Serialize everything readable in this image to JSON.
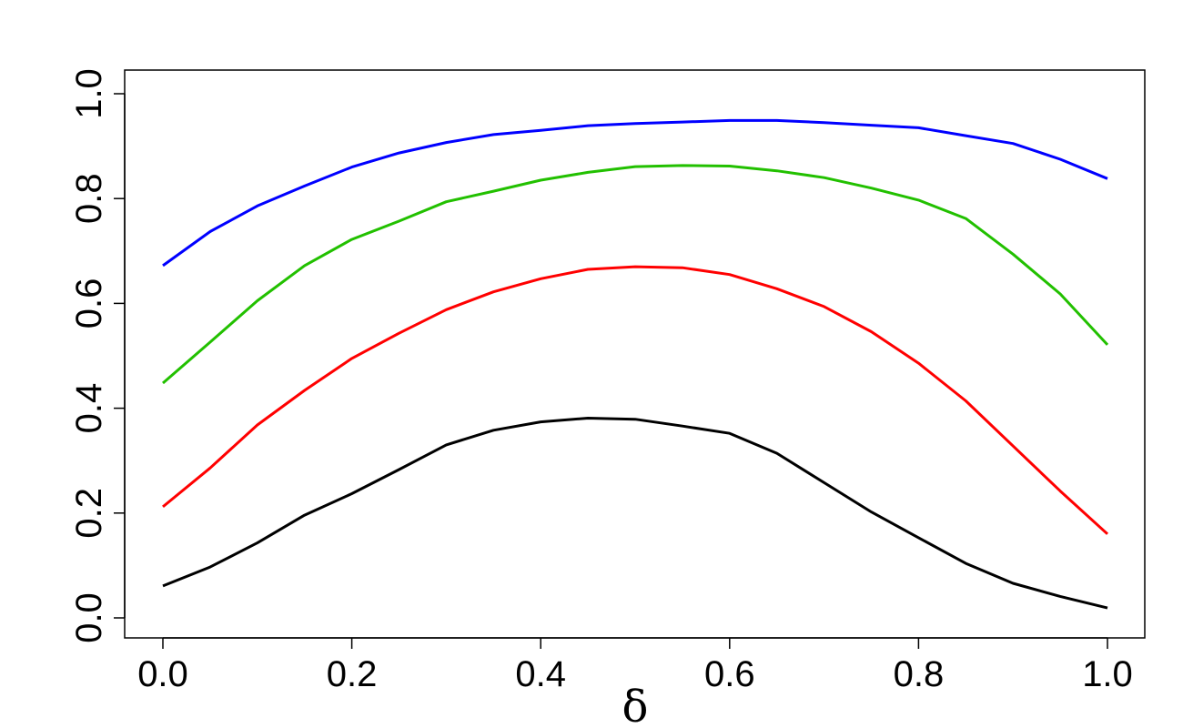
{
  "chart_data": {
    "type": "line",
    "title": "",
    "xlabel": "δ",
    "ylabel": "",
    "xlim": [
      0.0,
      1.0
    ],
    "ylim": [
      0.0,
      1.0
    ],
    "xticks": [
      "0.0",
      "0.2",
      "0.4",
      "0.6",
      "0.8",
      "1.0"
    ],
    "yticks": [
      "0.0",
      "0.2",
      "0.4",
      "0.6",
      "0.8",
      "1.0"
    ],
    "grid": false,
    "legend": "none",
    "x": [
      0.0,
      0.05,
      0.1,
      0.15,
      0.2,
      0.25,
      0.3,
      0.35,
      0.4,
      0.45,
      0.5,
      0.55,
      0.6,
      0.65,
      0.7,
      0.75,
      0.8,
      0.85,
      0.9,
      0.95,
      1.0
    ],
    "series": [
      {
        "color": "#0000ff",
        "values": [
          0.672,
          0.737,
          0.786,
          0.824,
          0.86,
          0.887,
          0.907,
          0.922,
          0.93,
          0.939,
          0.943,
          0.946,
          0.949,
          0.949,
          0.945,
          0.94,
          0.935,
          0.92,
          0.905,
          0.875,
          0.838
        ]
      },
      {
        "color": "#22c000",
        "values": [
          0.448,
          0.526,
          0.605,
          0.672,
          0.722,
          0.757,
          0.794,
          0.814,
          0.835,
          0.85,
          0.861,
          0.863,
          0.862,
          0.853,
          0.84,
          0.82,
          0.797,
          0.762,
          0.694,
          0.618,
          0.521
        ]
      },
      {
        "color": "#ff0000",
        "values": [
          0.212,
          0.286,
          0.368,
          0.434,
          0.495,
          0.543,
          0.588,
          0.622,
          0.647,
          0.665,
          0.67,
          0.668,
          0.655,
          0.628,
          0.594,
          0.546,
          0.486,
          0.414,
          0.328,
          0.242,
          0.16
        ]
      },
      {
        "color": "#000000",
        "values": [
          0.061,
          0.097,
          0.143,
          0.196,
          0.237,
          0.283,
          0.33,
          0.358,
          0.374,
          0.381,
          0.379,
          0.366,
          0.352,
          0.314,
          0.258,
          0.202,
          0.153,
          0.104,
          0.066,
          0.041,
          0.019
        ]
      }
    ]
  }
}
